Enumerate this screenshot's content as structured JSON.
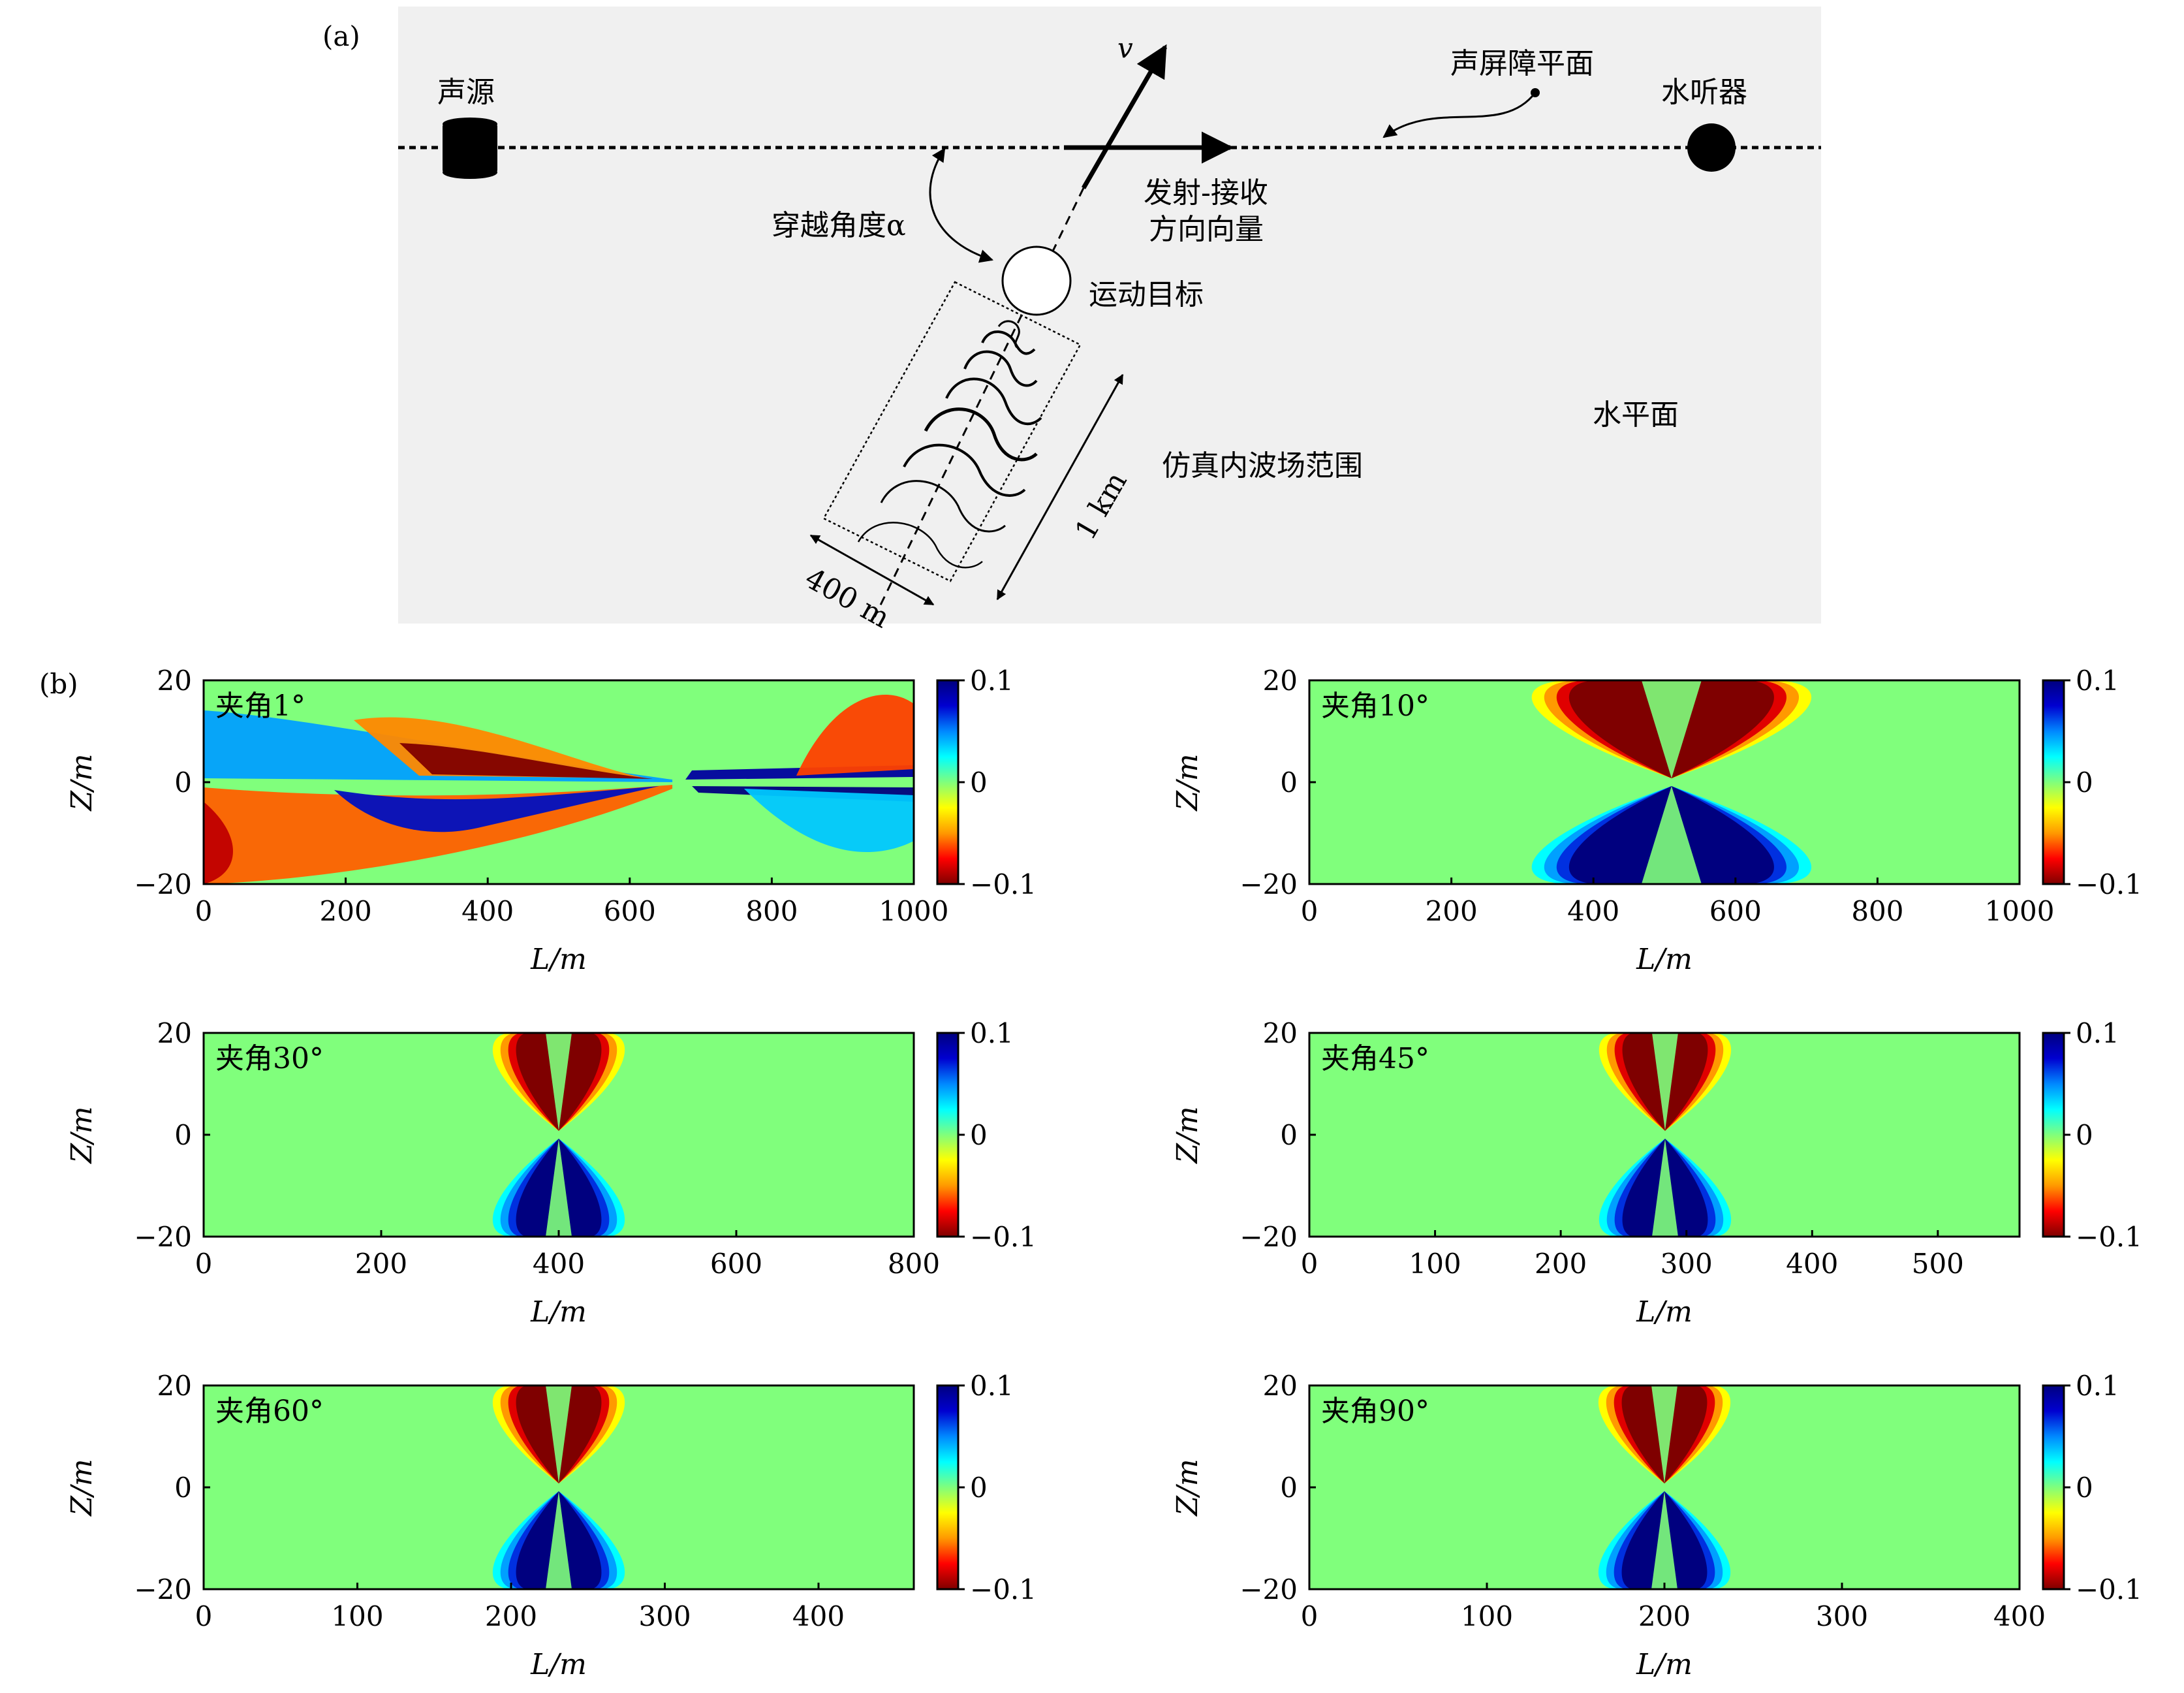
{
  "panel_a": {
    "label": "(a)",
    "source": "声源",
    "hydrophone": "水听器",
    "velocity": "v",
    "barrier": "声屏障平面",
    "crossing_angle": "穿越角度α",
    "direction_line1": "发射-接收",
    "direction_line2": "方向向量",
    "target": "运动目标",
    "water_surface": "水平面",
    "sim_range": "仿真内波场范围",
    "length_1km": "1 km",
    "width_400m": "400 m"
  },
  "panel_b": {
    "label": "(b)"
  },
  "colors": {
    "diagram_bg": "#f0f0f0",
    "colormap": [
      "#7f0000",
      "#ff0000",
      "#ff9900",
      "#ffff00",
      "#80ff7c",
      "#00ffff",
      "#0088ff",
      "#0000d0",
      "#00007f"
    ]
  },
  "chart_data": [
    {
      "type": "heatmap",
      "id": "angle-1",
      "title": "夹角1°",
      "xlabel": "L/m",
      "ylabel": "Z/m",
      "xlim": [
        0,
        1000
      ],
      "ylim": [
        -20,
        20
      ],
      "xticks": [
        "0",
        "200",
        "400",
        "600",
        "800",
        "1000"
      ],
      "xtick_values": [
        0,
        200,
        400,
        600,
        800,
        1000
      ],
      "yticks": [
        "20",
        "0",
        "−20"
      ],
      "ytick_values": [
        20,
        0,
        -20
      ],
      "colorbar": {
        "range": [
          -0.1,
          0.1
        ],
        "ticks": [
          "0.1",
          "0",
          "−0.1"
        ]
      },
      "center_x": 660
    },
    {
      "type": "heatmap",
      "id": "angle-10",
      "title": "夹角10°",
      "xlabel": "L/m",
      "ylabel": "Z/m",
      "xlim": [
        0,
        1000
      ],
      "ylim": [
        -20,
        20
      ],
      "xticks": [
        "0",
        "200",
        "400",
        "600",
        "800",
        "1000"
      ],
      "xtick_values": [
        0,
        200,
        400,
        600,
        800,
        1000
      ],
      "yticks": [
        "20",
        "0",
        "−20"
      ],
      "ytick_values": [
        20,
        0,
        -20
      ],
      "colorbar": {
        "range": [
          -0.1,
          0.1
        ],
        "ticks": [
          "0.1",
          "0",
          "−0.1"
        ]
      },
      "center_x": 510
    },
    {
      "type": "heatmap",
      "id": "angle-30",
      "title": "夹角30°",
      "xlabel": "L/m",
      "ylabel": "Z/m",
      "xlim": [
        0,
        800
      ],
      "ylim": [
        -20,
        20
      ],
      "xticks": [
        "0",
        "200",
        "400",
        "600",
        "800"
      ],
      "xtick_values": [
        0,
        200,
        400,
        600,
        800
      ],
      "yticks": [
        "20",
        "0",
        "−20"
      ],
      "ytick_values": [
        20,
        0,
        -20
      ],
      "colorbar": {
        "range": [
          -0.1,
          0.1
        ],
        "ticks": [
          "0.1",
          "0",
          "−0.1"
        ]
      },
      "center_x": 400
    },
    {
      "type": "heatmap",
      "id": "angle-45",
      "title": "夹角45°",
      "xlabel": "L/m",
      "ylabel": "Z/m",
      "xlim": [
        0,
        565
      ],
      "ylim": [
        -20,
        20
      ],
      "xticks": [
        "0",
        "100",
        "200",
        "300",
        "400",
        "500"
      ],
      "xtick_values": [
        0,
        100,
        200,
        300,
        400,
        500
      ],
      "yticks": [
        "20",
        "0",
        "−20"
      ],
      "ytick_values": [
        20,
        0,
        -20
      ],
      "colorbar": {
        "range": [
          -0.1,
          0.1
        ],
        "ticks": [
          "0.1",
          "0",
          "−0.1"
        ]
      },
      "center_x": 283
    },
    {
      "type": "heatmap",
      "id": "angle-60",
      "title": "夹角60°",
      "xlabel": "L/m",
      "ylabel": "Z/m",
      "xlim": [
        0,
        462
      ],
      "ylim": [
        -20,
        20
      ],
      "xticks": [
        "0",
        "100",
        "200",
        "300",
        "400"
      ],
      "xtick_values": [
        0,
        100,
        200,
        300,
        400
      ],
      "yticks": [
        "20",
        "0",
        "−20"
      ],
      "ytick_values": [
        20,
        0,
        -20
      ],
      "colorbar": {
        "range": [
          -0.1,
          0.1
        ],
        "ticks": [
          "0.1",
          "0",
          "−0.1"
        ]
      },
      "center_x": 231
    },
    {
      "type": "heatmap",
      "id": "angle-90",
      "title": "夹角90°",
      "xlabel": "L/m",
      "ylabel": "Z/m",
      "xlim": [
        0,
        400
      ],
      "ylim": [
        -20,
        20
      ],
      "xticks": [
        "0",
        "100",
        "200",
        "300",
        "400"
      ],
      "xtick_values": [
        0,
        100,
        200,
        300,
        400
      ],
      "yticks": [
        "20",
        "0",
        "−20"
      ],
      "ytick_values": [
        20,
        0,
        -20
      ],
      "colorbar": {
        "range": [
          -0.1,
          0.1
        ],
        "ticks": [
          "0.1",
          "0",
          "−0.1"
        ]
      },
      "center_x": 200
    }
  ]
}
